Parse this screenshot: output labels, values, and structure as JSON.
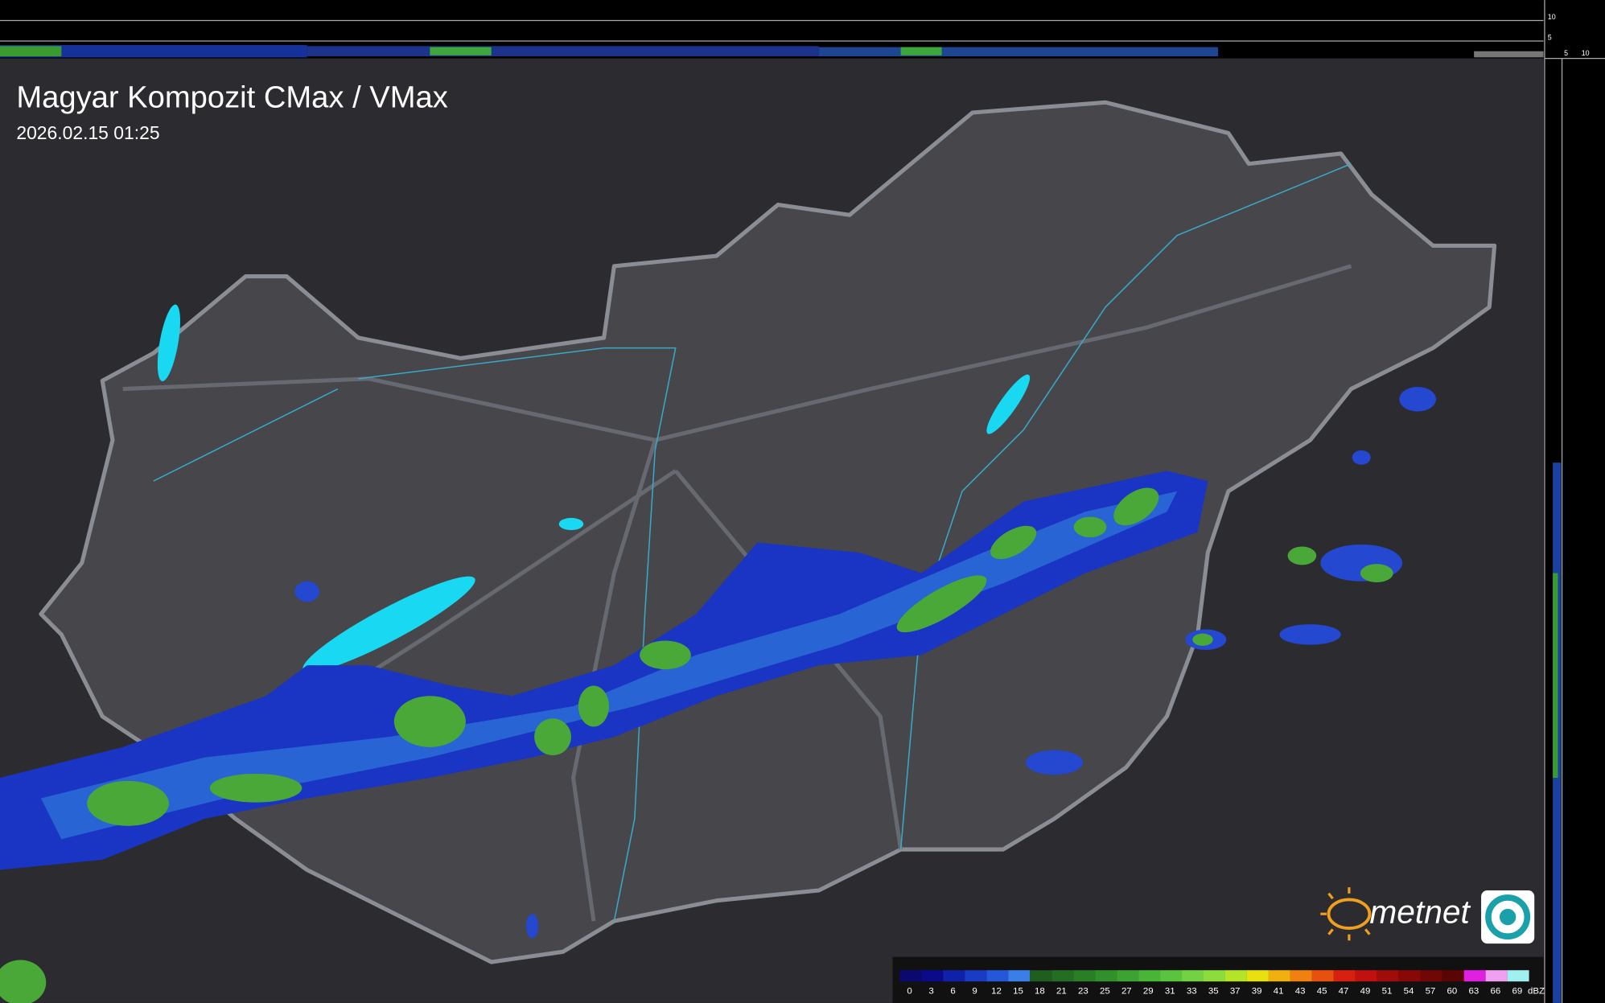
{
  "header": {
    "title": "Magyar Kompozit CMax / VMax",
    "timestamp": "2026.02.15 01:25"
  },
  "side_axis": {
    "top_labels": [
      "10",
      "5"
    ],
    "bottom_labels": [
      "5",
      "10"
    ]
  },
  "logo": {
    "text": "metnet"
  },
  "legend": {
    "unit": "dBZ",
    "ticks": [
      0,
      3,
      6,
      9,
      12,
      15,
      18,
      21,
      23,
      25,
      27,
      29,
      31,
      33,
      35,
      37,
      39,
      41,
      43,
      45,
      47,
      49,
      51,
      54,
      57,
      60,
      63,
      66,
      69
    ],
    "colors": [
      "#0a0a6e",
      "#0b0b8a",
      "#1020a8",
      "#1a3cc4",
      "#2458d8",
      "#3a7ee8",
      "#1f5e1f",
      "#236e23",
      "#2a7e26",
      "#32902c",
      "#3ca232",
      "#48b438",
      "#5ac43e",
      "#72d244",
      "#8cdc3c",
      "#b4e428",
      "#e8e010",
      "#f0b010",
      "#f08010",
      "#e85010",
      "#d82010",
      "#c01010",
      "#a00c0c",
      "#880808",
      "#700606",
      "#5a0404",
      "#e020e0",
      "#f0a0f0",
      "#a0f0f0"
    ]
  }
}
